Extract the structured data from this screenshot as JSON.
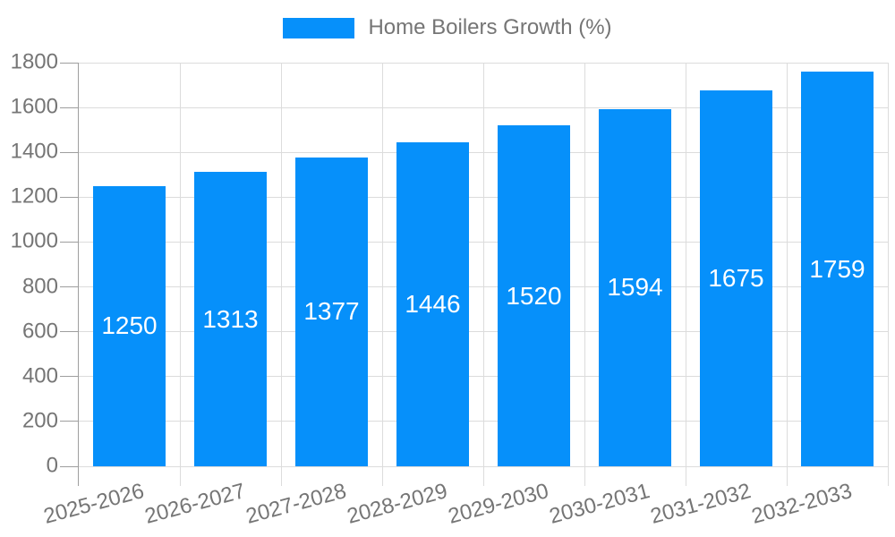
{
  "chart_data": {
    "type": "bar",
    "title": "Home Boilers Growth (%)",
    "legend": {
      "label": "Home Boilers Growth (%)",
      "position": "top",
      "swatch_color": "#0690fa"
    },
    "categories": [
      "2025-2026",
      "2026-2027",
      "2027-2028",
      "2028-2029",
      "2029-2030",
      "2030-2031",
      "2031-2032",
      "2032-2033"
    ],
    "series": [
      {
        "name": "Home Boilers Growth (%)",
        "values": [
          1250,
          1313,
          1377,
          1446,
          1520,
          1594,
          1675,
          1759
        ]
      }
    ],
    "value_labels": [
      "1250",
      "1313",
      "1377",
      "1446",
      "1520",
      "1594",
      "1675",
      "1759"
    ],
    "xlabel": "",
    "ylabel": "",
    "ylim": [
      0,
      1800
    ],
    "ytick_step": 200,
    "ytick_labels": [
      "0",
      "200",
      "400",
      "600",
      "800",
      "1000",
      "1200",
      "1400",
      "1600",
      "1800"
    ],
    "grid": true,
    "x_label_rotation_deg": -15,
    "bar_width_fraction": 0.72,
    "colors": {
      "bar": "#0690fa",
      "value_label": "#ffffff",
      "axis_text": "#757575",
      "gridline": "#dcdcdc",
      "axis_line": "#9e9e9e",
      "background": "#ffffff"
    }
  }
}
